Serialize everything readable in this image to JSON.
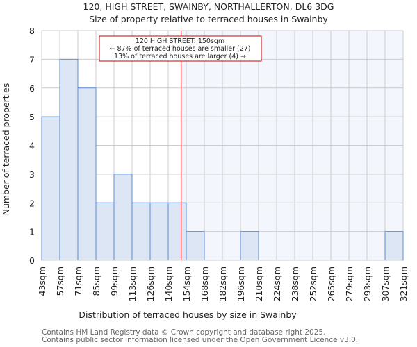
{
  "chart_data": {
    "type": "bar",
    "title_line1": "120, HIGH STREET, SWAINBY, NORTHALLERTON, DL6 3DG",
    "title_line2": "Size of property relative to terraced houses in Swainby",
    "xlabel": "Distribution of terraced houses by size in Swainby",
    "ylabel": "Number of terraced properties",
    "bin_edges": [
      43,
      57,
      71,
      85,
      99,
      113,
      126,
      140,
      154,
      168,
      182,
      196,
      210,
      224,
      238,
      252,
      265,
      279,
      293,
      307,
      321
    ],
    "tick_labels": [
      "43sqm",
      "57sqm",
      "71sqm",
      "85sqm",
      "99sqm",
      "113sqm",
      "126sqm",
      "140sqm",
      "154sqm",
      "168sqm",
      "182sqm",
      "196sqm",
      "210sqm",
      "224sqm",
      "238sqm",
      "252sqm",
      "265sqm",
      "279sqm",
      "293sqm",
      "307sqm",
      "321sqm"
    ],
    "values": [
      5,
      7,
      6,
      2,
      3,
      2,
      2,
      2,
      1,
      0,
      0,
      1,
      0,
      0,
      0,
      0,
      0,
      0,
      0,
      1
    ],
    "ylim": [
      0,
      8
    ],
    "yticks": [
      0,
      1,
      2,
      3,
      4,
      5,
      6,
      7,
      8
    ],
    "grid": true,
    "marker_value": 150,
    "annotation": {
      "line1": "120 HIGH STREET: 150sqm",
      "line2": "← 87% of terraced houses are smaller (27)",
      "line3": "13% of terraced houses are larger (4) →"
    },
    "colors": {
      "bar_fill": "#dce6f4",
      "bar_edge": "#5b8fd6",
      "marker": "#cc0000",
      "shade": "#f3f6fd",
      "grid": "#cccccc"
    }
  },
  "footer": {
    "line1": "Contains HM Land Registry data © Crown copyright and database right 2025.",
    "line2": "Contains public sector information licensed under the Open Government Licence v3.0."
  }
}
